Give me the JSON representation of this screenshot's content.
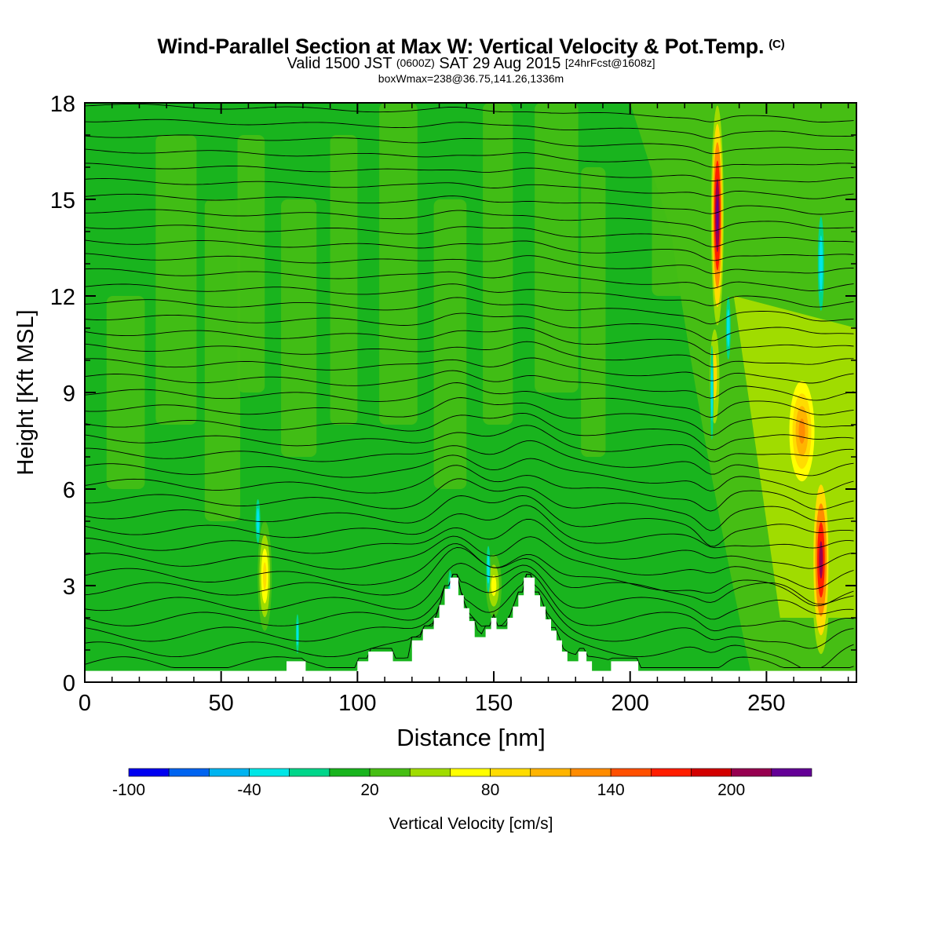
{
  "title": {
    "main": "Wind-Parallel Section at Max W: Vertical Velocity & Pot.Temp.",
    "copyright": "(C)",
    "valid_prefix": "Valid 1500 JST",
    "utc": "(0600Z)",
    "valid_date": "SAT 29 Aug 2015",
    "forecast": "[24hrFcst@1608z]",
    "boxinfo": "boxWmax=238@36.75,141.26,1336m"
  },
  "chart_data": {
    "type": "heatmap",
    "xlabel": "Distance [nm]",
    "ylabel": "Height [Kft MSL]",
    "xlim": [
      0,
      283
    ],
    "ylim": [
      0,
      18
    ],
    "xticks": [
      0,
      50,
      100,
      150,
      200,
      250
    ],
    "yticks": [
      0,
      3,
      6,
      9,
      12,
      15,
      18
    ],
    "colorbar": {
      "label": "Vertical Velocity [cm/s]",
      "ticks": [
        -100,
        -40,
        20,
        80,
        140,
        200
      ],
      "bounds": [
        -100,
        -80,
        -60,
        -40,
        -20,
        0,
        20,
        40,
        60,
        80,
        100,
        120,
        140,
        160,
        180,
        200,
        220,
        240
      ],
      "colors": [
        "#0000f0",
        "#0064f0",
        "#00b4f0",
        "#00e6e6",
        "#00d68a",
        "#19b41e",
        "#46be14",
        "#a0dc00",
        "#ffff00",
        "#ffdc00",
        "#ffb400",
        "#ff8c00",
        "#ff5000",
        "#ff1e00",
        "#d20000",
        "#960050",
        "#640096"
      ]
    },
    "background_level": "0 to 20",
    "terrain": [
      [
        0,
        0.35
      ],
      [
        74,
        0.35
      ],
      [
        74,
        0.65
      ],
      [
        81,
        0.65
      ],
      [
        81,
        0.35
      ],
      [
        100,
        0.35
      ],
      [
        100,
        0.65
      ],
      [
        104,
        0.65
      ],
      [
        104,
        0.95
      ],
      [
        113,
        0.95
      ],
      [
        113,
        0.65
      ],
      [
        120,
        0.65
      ],
      [
        120,
        1.3
      ],
      [
        124,
        1.3
      ],
      [
        124,
        1.65
      ],
      [
        128,
        1.65
      ],
      [
        128,
        2.0
      ],
      [
        130,
        2.0
      ],
      [
        130,
        2.4
      ],
      [
        132,
        2.4
      ],
      [
        132,
        2.9
      ],
      [
        134,
        2.9
      ],
      [
        134,
        3.25
      ],
      [
        137,
        3.25
      ],
      [
        137,
        2.7
      ],
      [
        139,
        2.7
      ],
      [
        139,
        2.3
      ],
      [
        141,
        2.3
      ],
      [
        141,
        1.9
      ],
      [
        143,
        1.9
      ],
      [
        143,
        1.4
      ],
      [
        147,
        1.4
      ],
      [
        147,
        1.65
      ],
      [
        149,
        1.65
      ],
      [
        149,
        2.0
      ],
      [
        151,
        2.0
      ],
      [
        151,
        1.65
      ],
      [
        155,
        1.65
      ],
      [
        155,
        2.0
      ],
      [
        157,
        2.0
      ],
      [
        157,
        2.35
      ],
      [
        159,
        2.35
      ],
      [
        159,
        2.7
      ],
      [
        161,
        2.7
      ],
      [
        161,
        3.25
      ],
      [
        165,
        3.25
      ],
      [
        165,
        2.7
      ],
      [
        167,
        2.7
      ],
      [
        167,
        2.35
      ],
      [
        169,
        2.35
      ],
      [
        169,
        1.95
      ],
      [
        171,
        1.95
      ],
      [
        171,
        1.6
      ],
      [
        173,
        1.6
      ],
      [
        173,
        1.3
      ],
      [
        175,
        1.3
      ],
      [
        175,
        0.95
      ],
      [
        177,
        0.95
      ],
      [
        177,
        0.65
      ],
      [
        181,
        0.65
      ],
      [
        181,
        0.95
      ],
      [
        184,
        0.95
      ],
      [
        184,
        0.65
      ],
      [
        186,
        0.65
      ],
      [
        186,
        0.35
      ],
      [
        193,
        0.35
      ],
      [
        193,
        0.65
      ],
      [
        203,
        0.65
      ],
      [
        203,
        0.35
      ],
      [
        283,
        0.35
      ]
    ],
    "updraft_cores": [
      {
        "distance_nm": 232,
        "height_kft": 14.5,
        "max_w_cm_s": 238
      },
      {
        "distance_nm": 270,
        "height_kft": 4.5,
        "max_w_cm_s": 210
      },
      {
        "distance_nm": 263,
        "height_kft": 8.0,
        "max_w_cm_s": 110
      },
      {
        "distance_nm": 66,
        "height_kft": 3.2,
        "max_w_cm_s": 80
      }
    ],
    "theta_contours": "approximately 38 isentropes, roughly evenly spaced in height, lifting over terrain near 135-165 nm and descending sharply near 230 nm and 270 nm"
  }
}
